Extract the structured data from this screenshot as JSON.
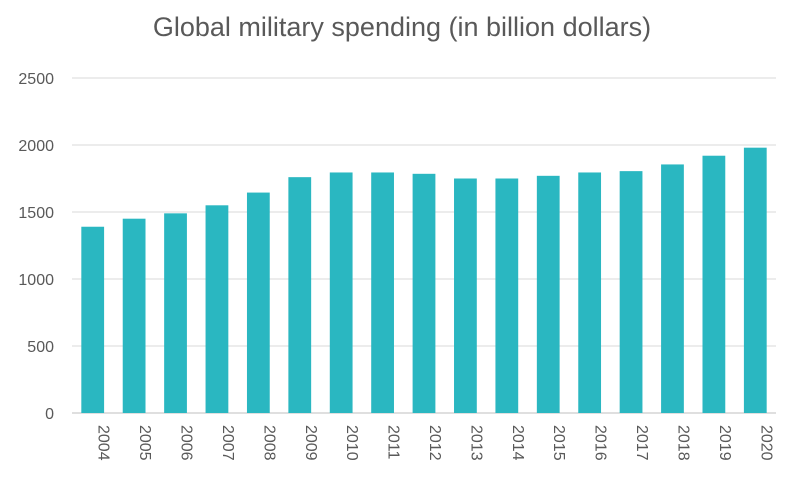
{
  "chart_data": {
    "type": "bar",
    "title": "Global military spending (in billion dollars)",
    "xlabel": "",
    "ylabel": "",
    "categories": [
      "2004",
      "2005",
      "2006",
      "2007",
      "2008",
      "2009",
      "2010",
      "2011",
      "2012",
      "2013",
      "2014",
      "2015",
      "2016",
      "2017",
      "2018",
      "2019",
      "2020"
    ],
    "values": [
      1390,
      1450,
      1490,
      1550,
      1645,
      1760,
      1795,
      1795,
      1785,
      1750,
      1750,
      1770,
      1795,
      1805,
      1855,
      1920,
      1980
    ],
    "ylim": [
      0,
      2500
    ],
    "yticks": [
      0,
      500,
      1000,
      1500,
      2000,
      2500
    ],
    "grid": true,
    "legend": "none",
    "bar_color": "#2ab7c1"
  }
}
